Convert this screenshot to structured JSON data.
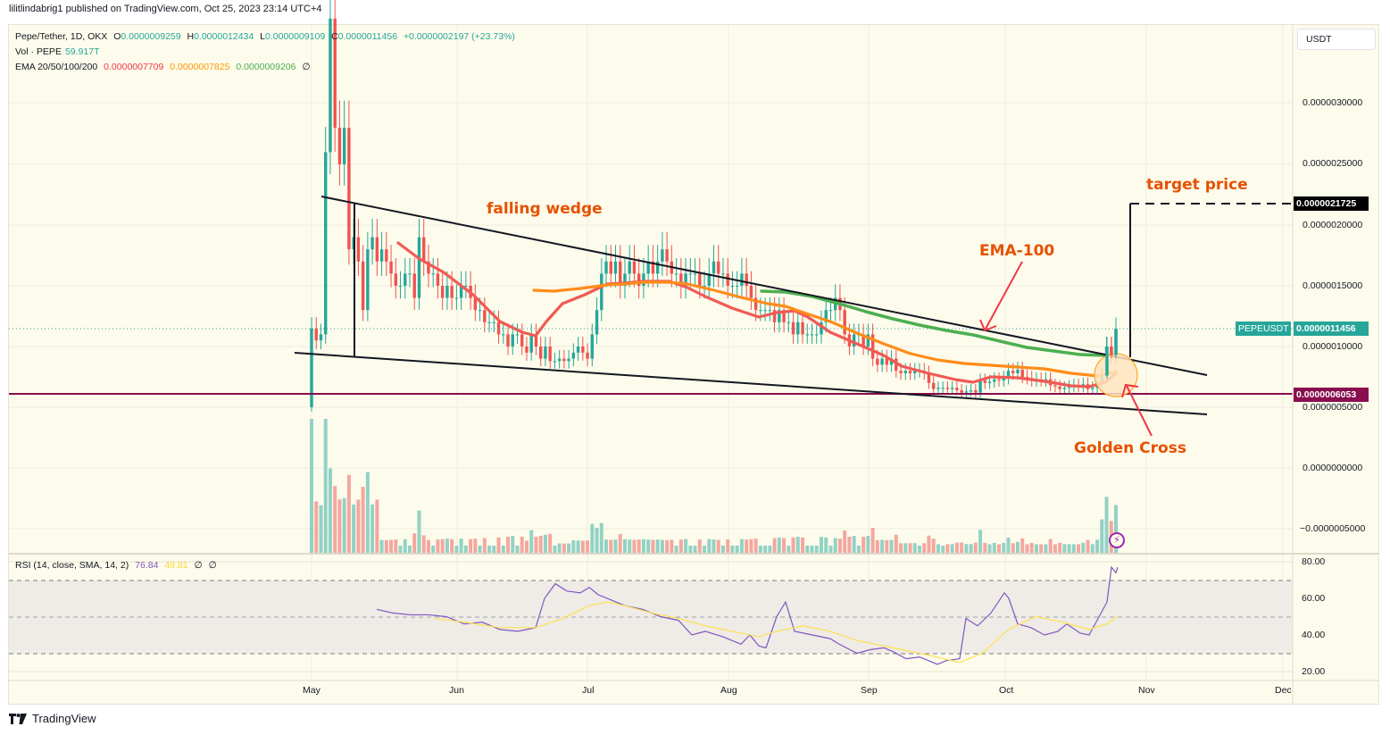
{
  "publish_line": "lilitlindabrig1 published on TradingView.com, Oct 25, 2023 23:14 UTC+4",
  "legend": {
    "symbol": "Pepe/Tether, 1D, OKX",
    "open_label": "O",
    "open": "0.0000009259",
    "high_label": "H",
    "high": "0.0000012434",
    "low_label": "L",
    "low": "0.0000009109",
    "close_label": "C",
    "close": "0.0000011456",
    "change": "+0.0000002197 (+23.73%)",
    "vol_label": "Vol · PEPE",
    "vol_value": "59.917T",
    "ema_label": "EMA 20/50/100/200",
    "ema20": "0.0000007709",
    "ema50": "0.0000007825",
    "ema100": "0.0000009206",
    "ema200": "∅",
    "rsi_label": "RSI (14, close, SMA, 14, 2)",
    "rsi_value": "76.84",
    "rsi_sma": "49.81",
    "rsi_extra1": "∅",
    "rsi_extra2": "∅"
  },
  "currency_button": "USDT",
  "price_axis": [
    "0.0000030000",
    "0.0000025000",
    "0.0000020000",
    "0.0000015000",
    "0.0000010000",
    "0.0000005000",
    "0.0000000000",
    "−0.0000005000"
  ],
  "rsi_axis": [
    "80.00",
    "60.00",
    "40.00",
    "20.00"
  ],
  "time_axis": [
    "May",
    "Jun",
    "Jul",
    "Aug",
    "Sep",
    "Oct",
    "Nov",
    "Dec"
  ],
  "price_tags": {
    "target": "0.0000021725",
    "symbol_tag": "PEPEUSDT",
    "last": "0.0000011456",
    "support": "0.0000006053"
  },
  "annotations": {
    "wedge": "falling wedge",
    "ema100": "EMA-100",
    "target": "target price",
    "golden_cross": "Golden Cross"
  },
  "colors": {
    "up": "#26a69a",
    "down": "#ef5350",
    "vol_up": "#92d2c5",
    "vol_down": "#f4a79f",
    "ema20": "#f05a55",
    "ema50": "#ff8c1a",
    "ema100": "#4caf50",
    "rsi": "#7e57c2",
    "rsi_sma": "#fde24f",
    "support": "#880e4f",
    "annot": "#e65100"
  },
  "footer_brand": "TradingView",
  "chart_data": [
    {
      "type": "candlestick",
      "title": "Pepe/Tether, 1D, OKX",
      "xlabel": "",
      "ylabel": "USDT",
      "x_ticks": [
        "May",
        "Jun",
        "Jul",
        "Aug",
        "Sep",
        "Oct",
        "Nov",
        "Dec"
      ],
      "ylim": [
        -7e-07,
        3.5e-06
      ],
      "approx_closes": {
        "early_May": 1.1e-06,
        "May_peak_high": 3.7e-06,
        "mid_May": 1.7e-06,
        "late_May": 1.3e-06,
        "mid_Jun": 9e-07,
        "early_Jul": 1.6e-06,
        "mid_Jul": 1.5e-06,
        "early_Aug": 1.2e-06,
        "mid_Aug": 1.3e-06,
        "early_Sep": 7.5e-07,
        "mid_Sep": 6.6e-07,
        "early_Oct": 7.5e-07,
        "mid_Oct": 6.5e-07,
        "Oct_25": 1.1456e-06
      },
      "overlays": {
        "falling_wedge_upper": [
          [
            "May 8",
            2.2e-06
          ],
          [
            "Oct 31",
            8.5e-07
          ]
        ],
        "falling_wedge_lower": [
          [
            "Apr 27",
            9.5e-07
          ],
          [
            "Oct 31",
            4.4e-07
          ]
        ],
        "support_line": 6.053e-07,
        "target_price": 2.1725e-06
      },
      "annotations": [
        "falling wedge",
        "EMA-100",
        "target price",
        "Golden Cross"
      ]
    },
    {
      "type": "bar",
      "title": "Vol · PEPE",
      "last_value": "59.917T"
    },
    {
      "type": "line",
      "title": "RSI (14, close, SMA, 14, 2)",
      "series": [
        {
          "name": "RSI",
          "last": 76.84
        },
        {
          "name": "RSI SMA",
          "last": 49.81
        }
      ],
      "ylim": [
        15,
        85
      ],
      "bands": [
        70,
        50,
        30
      ]
    }
  ]
}
